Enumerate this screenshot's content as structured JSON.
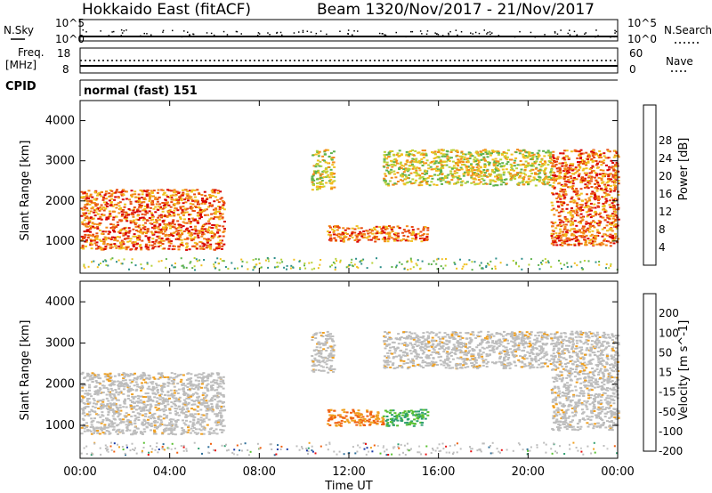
{
  "header": {
    "radar": "Hokkaido East (fitACF)",
    "beam": "Beam 13",
    "date_range": "20/Nov/2017 - 21/Nov/2017"
  },
  "noise_panel": {
    "left_label": "N.Sky",
    "right_label": "N.Search",
    "tick_top": "10^5",
    "tick_bottom": "10^0"
  },
  "freq_panel": {
    "left_label_line1": "Freq.",
    "left_label_line2": "[MHz]",
    "right_label": "Nave",
    "left_ticks": [
      "18",
      "8"
    ],
    "right_ticks": [
      "60",
      "0"
    ]
  },
  "cpid": {
    "label": "CPID",
    "mode": "normal (fast) 151"
  },
  "x_axis": {
    "ticks": [
      "00:00",
      "04:00",
      "08:00",
      "12:00",
      "16:00",
      "20:00",
      "00:00"
    ],
    "label": "Time UT"
  },
  "colors": {
    "axes": "#000000",
    "background": "#ffffff",
    "ground_scatter": "#bdbdbd"
  },
  "chart_data": [
    {
      "type": "heatmap",
      "name": "power",
      "ylabel": "Slant Range [km]",
      "ylim": [
        200,
        4500
      ],
      "xlim": [
        0,
        24
      ],
      "yticks": [
        "1000",
        "2000",
        "3000",
        "4000"
      ],
      "colorbar_label": "Power [dB]",
      "colorbar_ticks": [
        "4",
        "8",
        "12",
        "16",
        "20",
        "24",
        "28"
      ],
      "colorbar_colors": [
        "#0018ff",
        "#3a52b0",
        "#2e8f8a",
        "#5eb24c",
        "#b8d23a",
        "#f0c020",
        "#f38a18",
        "#e84a10",
        "#d80000"
      ],
      "regions": [
        {
          "x": [
            0.0,
            6.4
          ],
          "y": [
            800,
            2300
          ],
          "level": "high"
        },
        {
          "x": [
            10.3,
            11.3
          ],
          "y": [
            2300,
            3300
          ],
          "level": "medium"
        },
        {
          "x": [
            11.0,
            15.5
          ],
          "y": [
            1000,
            1400
          ],
          "level": "high"
        },
        {
          "x": [
            13.5,
            21.0
          ],
          "y": [
            2400,
            3300
          ],
          "level": "medium"
        },
        {
          "x": [
            21.0,
            24.0
          ],
          "y": [
            900,
            3300
          ],
          "level": "high"
        }
      ]
    },
    {
      "type": "heatmap",
      "name": "velocity",
      "ylabel": "Slant Range [km]",
      "ylim": [
        200,
        4500
      ],
      "xlim": [
        0,
        24
      ],
      "yticks": [
        "1000",
        "2000",
        "3000",
        "4000"
      ],
      "colorbar_label": "Velocity [m s^-1]",
      "colorbar_ticks": [
        "200",
        "100",
        "50",
        "15",
        "-15",
        "-50",
        "-100",
        "-200"
      ],
      "colorbar_colors": [
        "#1a3aa8",
        "#2e6f9a",
        "#2f9f70",
        "#58c030",
        "#c8c8c8",
        "#f0a020",
        "#f06010",
        "#e81010"
      ],
      "regions": [
        {
          "x": [
            0.0,
            6.4
          ],
          "y": [
            800,
            2300
          ],
          "level": "ground"
        },
        {
          "x": [
            10.3,
            11.3
          ],
          "y": [
            2300,
            3300
          ],
          "level": "ground"
        },
        {
          "x": [
            11.0,
            13.5
          ],
          "y": [
            1000,
            1400
          ],
          "level": "negative"
        },
        {
          "x": [
            13.5,
            15.5
          ],
          "y": [
            1000,
            1400
          ],
          "level": "positive"
        },
        {
          "x": [
            13.5,
            21.0
          ],
          "y": [
            2400,
            3300
          ],
          "level": "ground"
        },
        {
          "x": [
            21.0,
            24.0
          ],
          "y": [
            900,
            3300
          ],
          "level": "ground"
        }
      ]
    }
  ]
}
